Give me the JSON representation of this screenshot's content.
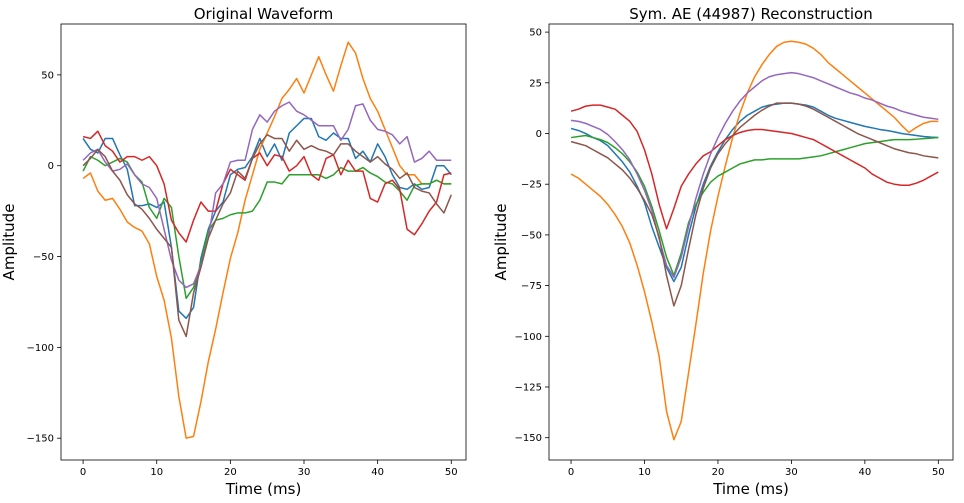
{
  "chart_data": [
    {
      "type": "line",
      "title": "Original Waveform",
      "xlabel": "Time (ms)",
      "ylabel": "Amplitude",
      "xlim": [
        -3,
        52
      ],
      "ylim": [
        -162,
        78
      ],
      "xticks": [
        0,
        10,
        20,
        30,
        40,
        50
      ],
      "yticks": [
        50,
        0,
        -50,
        -100,
        -150
      ],
      "grid": false,
      "series": [
        {
          "color": "#1f77b4",
          "values": [
            15,
            9,
            7,
            15,
            15,
            6,
            -2,
            -22,
            -22,
            -21,
            -23,
            -20,
            -45,
            -80,
            -84,
            -78,
            -51,
            -35,
            -25,
            -20,
            -5,
            -2,
            -1,
            5,
            15,
            5,
            12,
            3,
            18,
            22,
            26,
            26,
            16,
            14,
            18,
            15,
            15,
            4,
            8,
            2,
            12,
            5,
            -5,
            -12,
            -13,
            -10,
            -13,
            -12,
            0,
            0,
            -5
          ]
        },
        {
          "color": "#ff7f0e",
          "values": [
            -7,
            -4,
            -14,
            -19,
            -18,
            -24,
            -31,
            -34,
            -36,
            -43,
            -61,
            -74,
            -95,
            -127,
            -150,
            -149,
            -130,
            -108,
            -90,
            -70,
            -51,
            -37,
            -19,
            -5,
            9,
            18,
            27,
            37,
            42,
            48,
            40,
            50,
            60,
            50,
            41,
            55,
            68,
            62,
            48,
            37,
            30,
            20,
            10,
            0,
            -5,
            -5,
            -10,
            -10,
            -8,
            -10,
            -10
          ]
        },
        {
          "color": "#2ca02c",
          "values": [
            -3,
            5,
            3,
            0,
            2,
            4,
            2,
            -5,
            -9,
            -23,
            -29,
            -18,
            -23,
            -50,
            -73,
            -67,
            -54,
            -36,
            -30,
            -29,
            -27,
            -26,
            -26,
            -25,
            -19,
            -9,
            -9,
            -10,
            -5,
            -5,
            -5,
            -5,
            -5,
            -7,
            -5,
            -1,
            -3,
            -3,
            -1,
            -4,
            -6,
            -9,
            -10,
            -14,
            -19,
            -11,
            -10,
            -10,
            -8,
            -10,
            -10
          ]
        },
        {
          "color": "#d62728",
          "values": [
            16,
            15,
            19,
            11,
            8,
            2,
            5,
            5,
            3,
            5,
            0,
            -10,
            -30,
            -37,
            -42,
            -30,
            -20,
            -25,
            -25,
            -10,
            -2,
            -5,
            -8,
            4,
            7,
            0,
            6,
            5,
            -3,
            0,
            5,
            -5,
            -8,
            4,
            6,
            -5,
            3,
            -3,
            -3,
            -18,
            -20,
            -10,
            -8,
            -13,
            -35,
            -38,
            -32,
            -25,
            -20,
            -5,
            -4
          ]
        },
        {
          "color": "#9467bd",
          "values": [
            3,
            7,
            9,
            2,
            -3,
            -2,
            1,
            -5,
            -10,
            -12,
            -18,
            -35,
            -52,
            -63,
            -67,
            -65,
            -55,
            -40,
            -15,
            -10,
            2,
            3,
            3,
            20,
            28,
            24,
            30,
            33,
            35,
            30,
            28,
            25,
            22,
            22,
            22,
            14,
            20,
            33,
            34,
            25,
            20,
            19,
            17,
            12,
            16,
            2,
            4,
            8,
            3,
            3,
            3
          ]
        },
        {
          "color": "#8c564b",
          "values": [
            0,
            4,
            9,
            5,
            -3,
            -8,
            -16,
            -21,
            -24,
            -29,
            -35,
            -40,
            -45,
            -85,
            -94,
            -70,
            -56,
            -40,
            -30,
            -21,
            -15,
            -3,
            -7,
            4,
            12,
            17,
            15,
            15,
            8,
            14,
            9,
            11,
            9,
            8,
            6,
            12,
            12,
            8,
            5,
            2,
            5,
            1,
            -2,
            -7,
            -4,
            -12,
            -14,
            -15,
            -21,
            -26,
            -16
          ]
        }
      ]
    },
    {
      "type": "line",
      "title": "Sym. AE (44987) Reconstruction",
      "xlabel": "Time (ms)",
      "ylabel": "Amplitude",
      "xlim": [
        -3,
        52
      ],
      "ylim": [
        -161,
        54
      ],
      "xticks": [
        0,
        10,
        20,
        30,
        40,
        50
      ],
      "yticks": [
        50,
        25,
        0,
        -25,
        -50,
        -75,
        -100,
        -125,
        -150
      ],
      "grid": false,
      "series": [
        {
          "color": "#1f77b4",
          "values": [
            2.5,
            1.5,
            0,
            -2,
            -3.5,
            -6,
            -10,
            -14,
            -19,
            -26,
            -34,
            -46,
            -56,
            -66,
            -73,
            -66,
            -50,
            -36,
            -25,
            -16,
            -9,
            -3,
            2,
            6,
            9,
            11,
            13,
            14,
            14.5,
            15,
            15,
            14.5,
            14,
            13,
            11,
            9,
            7.5,
            6.5,
            5.5,
            4.5,
            3.5,
            2.8,
            2,
            1.5,
            0.8,
            0,
            -0.5,
            -1,
            -1.5,
            -1.8,
            -2
          ]
        },
        {
          "color": "#ff7f0e",
          "values": [
            -20,
            -22,
            -25,
            -28,
            -31,
            -35,
            -40,
            -46,
            -54,
            -65,
            -78,
            -93,
            -110,
            -137,
            -151,
            -142,
            -118,
            -94,
            -69,
            -48,
            -31,
            -16,
            -2,
            10,
            20,
            28,
            34,
            39,
            43,
            45,
            45.5,
            45,
            44,
            42,
            39,
            35,
            32,
            29,
            26,
            23,
            20,
            17,
            14,
            11,
            8,
            4,
            0.5,
            3,
            5,
            6,
            6
          ]
        },
        {
          "color": "#2ca02c",
          "values": [
            -2,
            -1.5,
            -1,
            -2,
            -3,
            -4.5,
            -7,
            -10,
            -14,
            -19,
            -26,
            -36,
            -48,
            -61,
            -70,
            -59,
            -44,
            -35,
            -29,
            -24,
            -21,
            -19,
            -17,
            -15,
            -14,
            -13,
            -13,
            -12.5,
            -12.5,
            -12.5,
            -12.5,
            -12.5,
            -12,
            -11.5,
            -11,
            -10,
            -9,
            -8,
            -7,
            -6,
            -5,
            -4.5,
            -4,
            -3.5,
            -3,
            -3,
            -3,
            -2.8,
            -2.5,
            -2.3,
            -2
          ]
        },
        {
          "color": "#d62728",
          "values": [
            11,
            12,
            13.5,
            14,
            14,
            13,
            12,
            9,
            6,
            1,
            -8,
            -20,
            -35,
            -47,
            -37,
            -26,
            -20,
            -15,
            -11,
            -9,
            -6,
            -3,
            -1,
            0.5,
            1.5,
            2,
            2,
            1.5,
            1,
            0.5,
            0,
            -1,
            -2,
            -3,
            -5,
            -7,
            -9,
            -11,
            -13,
            -15,
            -17,
            -20,
            -22,
            -24,
            -25,
            -25.5,
            -25.5,
            -24.5,
            -23,
            -21,
            -19
          ]
        },
        {
          "color": "#9467bd",
          "values": [
            6.5,
            6,
            5,
            3.5,
            2,
            -0.5,
            -4,
            -8,
            -13,
            -20,
            -28,
            -38,
            -52,
            -65,
            -71,
            -61,
            -46,
            -32,
            -20,
            -10,
            -2,
            5,
            11,
            16,
            20,
            23,
            26,
            28,
            29,
            29.5,
            30,
            29.5,
            28.5,
            27.5,
            26,
            24.5,
            23,
            21.5,
            20,
            19,
            17.5,
            16.5,
            15,
            13.5,
            12.5,
            11,
            10,
            9,
            8,
            7.5,
            7
          ]
        },
        {
          "color": "#8c564b",
          "values": [
            -4,
            -5,
            -6,
            -8,
            -10,
            -12,
            -15,
            -18,
            -22,
            -27,
            -33,
            -40,
            -51,
            -70,
            -85,
            -75,
            -57,
            -40,
            -27,
            -17,
            -10,
            -5,
            -1,
            3,
            6,
            9,
            11.5,
            13.5,
            15,
            15,
            15,
            14.5,
            13.5,
            12,
            10,
            8,
            6,
            4,
            2,
            0,
            -1.5,
            -3,
            -4.5,
            -6,
            -7.5,
            -8.5,
            -9.5,
            -10,
            -11,
            -11.5,
            -12
          ]
        }
      ]
    }
  ]
}
